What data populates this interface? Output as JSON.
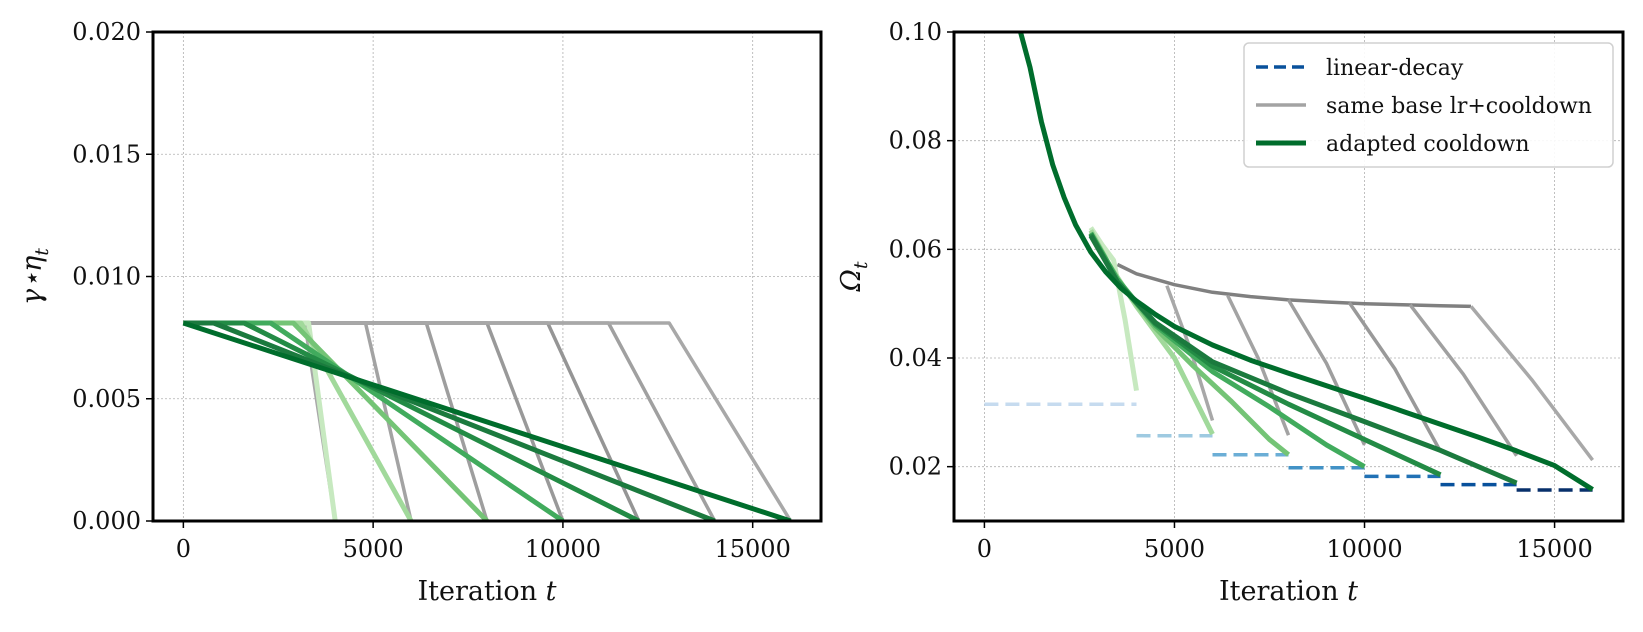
{
  "chart_data": [
    {
      "type": "line",
      "panel": "left",
      "title": "",
      "xlabel": "Iteration t",
      "ylabel": "γ⋆η_t",
      "xlim": [
        -800,
        16800
      ],
      "ylim": [
        0,
        0.02
      ],
      "xticks": [
        0,
        5000,
        10000,
        15000
      ],
      "xtick_labels": [
        "0",
        "5000",
        "10000",
        "15000"
      ],
      "yticks": [
        0,
        0.005,
        0.01,
        0.015,
        0.02
      ],
      "ytick_labels": [
        "0.000",
        "0.005",
        "0.010",
        "0.015",
        "0.020"
      ],
      "grid": true,
      "series": [
        {
          "group": "same base lr+cooldown",
          "color": "#a8a8a8",
          "x": [
            0,
            3200,
            4000
          ],
          "y": [
            0.0081,
            0.0081,
            0
          ]
        },
        {
          "group": "same base lr+cooldown",
          "color": "#a3a3a3",
          "x": [
            0,
            4800,
            6000
          ],
          "y": [
            0.0081,
            0.0081,
            0
          ]
        },
        {
          "group": "same base lr+cooldown",
          "color": "#9e9e9e",
          "x": [
            0,
            6400,
            8000
          ],
          "y": [
            0.0081,
            0.0081,
            0
          ]
        },
        {
          "group": "same base lr+cooldown",
          "color": "#999999",
          "x": [
            0,
            8000,
            10000
          ],
          "y": [
            0.0081,
            0.0081,
            0
          ]
        },
        {
          "group": "same base lr+cooldown",
          "color": "#959595",
          "x": [
            0,
            9600,
            12000
          ],
          "y": [
            0.0081,
            0.0081,
            0
          ]
        },
        {
          "group": "same base lr+cooldown",
          "color": "#a0a0a0",
          "x": [
            0,
            11200,
            14000
          ],
          "y": [
            0.0081,
            0.0081,
            0
          ]
        },
        {
          "group": "same base lr+cooldown",
          "color": "#a8a8a8",
          "x": [
            0,
            12800,
            16000
          ],
          "y": [
            0.0081,
            0.0081,
            0
          ]
        },
        {
          "group": "adapted cooldown",
          "color": "#c7e9c0",
          "x": [
            0,
            3300,
            4000
          ],
          "y": [
            0.0081,
            0.0081,
            0
          ]
        },
        {
          "group": "adapted cooldown",
          "color": "#a1d99b",
          "x": [
            0,
            3100,
            6000
          ],
          "y": [
            0.0081,
            0.0081,
            0
          ]
        },
        {
          "group": "adapted cooldown",
          "color": "#74c476",
          "x": [
            0,
            2900,
            8000
          ],
          "y": [
            0.0081,
            0.0081,
            0
          ]
        },
        {
          "group": "adapted cooldown",
          "color": "#41ab5d",
          "x": [
            0,
            2300,
            10000
          ],
          "y": [
            0.0081,
            0.0081,
            0
          ]
        },
        {
          "group": "adapted cooldown",
          "color": "#238b45",
          "x": [
            0,
            1600,
            12000
          ],
          "y": [
            0.0081,
            0.0081,
            0
          ]
        },
        {
          "group": "adapted cooldown",
          "color": "#1b7a3e",
          "x": [
            0,
            800,
            14000
          ],
          "y": [
            0.0081,
            0.0081,
            0
          ]
        },
        {
          "group": "adapted cooldown",
          "color": "#006d2c",
          "x": [
            0,
            16000
          ],
          "y": [
            0.0081,
            0
          ]
        }
      ]
    },
    {
      "type": "line",
      "panel": "right",
      "title": "",
      "xlabel": "Iteration t",
      "ylabel": "Ω_t",
      "xlim": [
        -800,
        16800
      ],
      "ylim": [
        0.01,
        0.1
      ],
      "xticks": [
        0,
        5000,
        10000,
        15000
      ],
      "xtick_labels": [
        "0",
        "5000",
        "10000",
        "15000"
      ],
      "yticks": [
        0.02,
        0.04,
        0.06,
        0.08,
        0.1
      ],
      "ytick_labels": [
        "0.02",
        "0.04",
        "0.06",
        "0.08",
        "0.10"
      ],
      "grid": true,
      "legend": {
        "position": "top-right",
        "entries": [
          {
            "label": "linear-decay",
            "color": "#08519c",
            "style": "dashed"
          },
          {
            "label": "same base lr+cooldown",
            "color": "#a3a3a3",
            "style": "solid"
          },
          {
            "label": "adapted cooldown",
            "color": "#006d2c",
            "style": "solid"
          }
        ]
      },
      "series": [
        {
          "group": "linear-decay",
          "color": "#c6dbef",
          "x": [
            0,
            4000
          ],
          "y": [
            0.0315,
            0.0315
          ]
        },
        {
          "group": "linear-decay",
          "color": "#9ecae1",
          "x": [
            4000,
            6000
          ],
          "y": [
            0.0257,
            0.0257
          ]
        },
        {
          "group": "linear-decay",
          "color": "#6baed6",
          "x": [
            6000,
            8000
          ],
          "y": [
            0.0222,
            0.0222
          ]
        },
        {
          "group": "linear-decay",
          "color": "#4292c6",
          "x": [
            8000,
            10000
          ],
          "y": [
            0.0198,
            0.0198
          ]
        },
        {
          "group": "linear-decay",
          "color": "#2171b5",
          "x": [
            10000,
            12000
          ],
          "y": [
            0.0182,
            0.0182
          ]
        },
        {
          "group": "linear-decay",
          "color": "#08519c",
          "x": [
            12000,
            14000
          ],
          "y": [
            0.0167,
            0.0167
          ]
        },
        {
          "group": "linear-decay",
          "color": "#08306b",
          "x": [
            14000,
            16000
          ],
          "y": [
            0.0157,
            0.0157
          ]
        },
        {
          "group": "same base lr+cooldown",
          "color": "#808080",
          "x": [
            3500,
            4000,
            5000,
            6000,
            7000,
            8000,
            9000,
            10000,
            11000,
            12000,
            12800
          ],
          "y": [
            0.0572,
            0.0555,
            0.0535,
            0.0521,
            0.0513,
            0.0507,
            0.0503,
            0.05,
            0.0498,
            0.0496,
            0.0495
          ]
        },
        {
          "group": "same base lr+cooldown",
          "color": "#a8a8a8",
          "x": [
            4800,
            5400,
            6000
          ],
          "y": [
            0.0533,
            0.042,
            0.0285
          ]
        },
        {
          "group": "same base lr+cooldown",
          "color": "#a3a3a3",
          "x": [
            6400,
            7200,
            8000
          ],
          "y": [
            0.0515,
            0.04,
            0.0258
          ]
        },
        {
          "group": "same base lr+cooldown",
          "color": "#9e9e9e",
          "x": [
            8000,
            9000,
            10000
          ],
          "y": [
            0.0507,
            0.039,
            0.024
          ]
        },
        {
          "group": "same base lr+cooldown",
          "color": "#999999",
          "x": [
            9600,
            10800,
            12000
          ],
          "y": [
            0.0502,
            0.038,
            0.0228
          ]
        },
        {
          "group": "same base lr+cooldown",
          "color": "#a0a0a0",
          "x": [
            11200,
            12600,
            14000
          ],
          "y": [
            0.0498,
            0.037,
            0.022
          ]
        },
        {
          "group": "same base lr+cooldown",
          "color": "#a8a8a8",
          "x": [
            12800,
            14400,
            16000
          ],
          "y": [
            0.0495,
            0.036,
            0.0212
          ]
        },
        {
          "group": "adapted cooldown",
          "color": "#c7e9c0",
          "x": [
            2800,
            3100,
            3400,
            3700,
            4000
          ],
          "y": [
            0.064,
            0.0608,
            0.058,
            0.047,
            0.034
          ]
        },
        {
          "group": "adapted cooldown",
          "color": "#a1d99b",
          "x": [
            2800,
            3300,
            4000,
            5000,
            6000
          ],
          "y": [
            0.0635,
            0.057,
            0.0495,
            0.04,
            0.026
          ]
        },
        {
          "group": "adapted cooldown",
          "color": "#74c476",
          "x": [
            2800,
            3500,
            4500,
            5500,
            6500,
            7500,
            8000
          ],
          "y": [
            0.063,
            0.0545,
            0.0455,
            0.0385,
            0.032,
            0.025,
            0.0222
          ]
        },
        {
          "group": "adapted cooldown",
          "color": "#41ab5d",
          "x": [
            2800,
            3500,
            4500,
            6000,
            7500,
            9000,
            10000
          ],
          "y": [
            0.063,
            0.0545,
            0.046,
            0.0375,
            0.031,
            0.024,
            0.02
          ]
        },
        {
          "group": "adapted cooldown",
          "color": "#238b45",
          "x": [
            2800,
            3500,
            4500,
            6000,
            8000,
            10000,
            12000
          ],
          "y": [
            0.0628,
            0.054,
            0.0463,
            0.0385,
            0.0315,
            0.025,
            0.0185
          ]
        },
        {
          "group": "adapted cooldown",
          "color": "#1b7a3e",
          "x": [
            2800,
            3500,
            4500,
            6000,
            8000,
            10000,
            12000,
            14000
          ],
          "y": [
            0.0625,
            0.054,
            0.0465,
            0.0393,
            0.0335,
            0.0283,
            0.023,
            0.017
          ]
        },
        {
          "group": "adapted cooldown",
          "color": "#006d2c",
          "x": [
            950,
            1200,
            1500,
            1800,
            2100,
            2400,
            2800,
            3200,
            3600,
            4000,
            4500,
            5000,
            6000,
            7000,
            8000,
            9000,
            10000,
            11000,
            12000,
            13000,
            14000,
            15000,
            16000
          ],
          "y": [
            0.1,
            0.0935,
            0.0835,
            0.0755,
            0.0695,
            0.0645,
            0.0595,
            0.0558,
            0.0528,
            0.0505,
            0.048,
            0.0458,
            0.0424,
            0.0396,
            0.0372,
            0.0349,
            0.0326,
            0.0302,
            0.0278,
            0.0254,
            0.0229,
            0.0202,
            0.0158
          ]
        }
      ]
    }
  ]
}
